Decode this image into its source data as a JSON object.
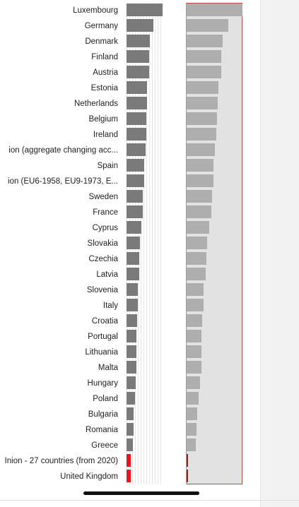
{
  "chart_data": {
    "type": "bar",
    "orientation": "horizontal",
    "categories": [
      "Luxembourg",
      "Germany",
      "Denmark",
      "Finland",
      "Austria",
      "Estonia",
      "Netherlands",
      "Belgium",
      "Ireland",
      "ion (aggregate changing acc...",
      "Spain",
      "ion (EU6-1958, EU9-1973, E...",
      "Sweden",
      "France",
      "Cyprus",
      "Slovakia",
      "Czechia",
      "Latvia",
      "Slovenia",
      "Italy",
      "Croatia",
      "Portugal",
      "Lithuania",
      "Malta",
      "Hungary",
      "Poland",
      "Bulgaria",
      "Romania",
      "Greece",
      "Inion - 27 countries (from 2020)",
      "United Kingdom"
    ],
    "series": [
      {
        "values": [
          1.0,
          0.75,
          0.65,
          0.63,
          0.63,
          0.57,
          0.56,
          0.55,
          0.54,
          0.52,
          0.49,
          0.49,
          0.46,
          0.45,
          0.42,
          0.38,
          0.36,
          0.35,
          0.32,
          0.31,
          0.29,
          0.28,
          0.27,
          0.27,
          0.25,
          0.23,
          0.2,
          0.19,
          0.17,
          0.12,
          0.12
        ],
        "highlight": [
          false,
          false,
          false,
          false,
          false,
          false,
          false,
          false,
          false,
          false,
          false,
          false,
          false,
          false,
          false,
          false,
          false,
          false,
          false,
          false,
          false,
          false,
          false,
          false,
          false,
          false,
          false,
          false,
          false,
          true,
          true
        ]
      },
      {
        "values": [
          1.0,
          0.75,
          0.64,
          0.62,
          0.62,
          0.57,
          0.56,
          0.54,
          0.53,
          0.51,
          0.48,
          0.48,
          0.45,
          0.44,
          0.41,
          0.37,
          0.35,
          0.34,
          0.31,
          0.3,
          0.28,
          0.27,
          0.26,
          0.26,
          0.24,
          0.22,
          0.19,
          0.18,
          0.16,
          0.03,
          0.03
        ],
        "highlight": [
          false,
          false,
          false,
          false,
          false,
          false,
          false,
          false,
          false,
          false,
          false,
          false,
          false,
          false,
          false,
          false,
          false,
          false,
          false,
          false,
          false,
          false,
          false,
          false,
          false,
          false,
          false,
          false,
          false,
          true,
          true
        ]
      }
    ],
    "colors": {
      "bar1": "#7a7a7a",
      "bar1_highlight": "#e8141e",
      "bar2": "#aeaeae",
      "bar2_highlight": "#9e1c1c",
      "panel_bg": "#e2e2e2"
    },
    "grid": false,
    "legend": "none"
  }
}
